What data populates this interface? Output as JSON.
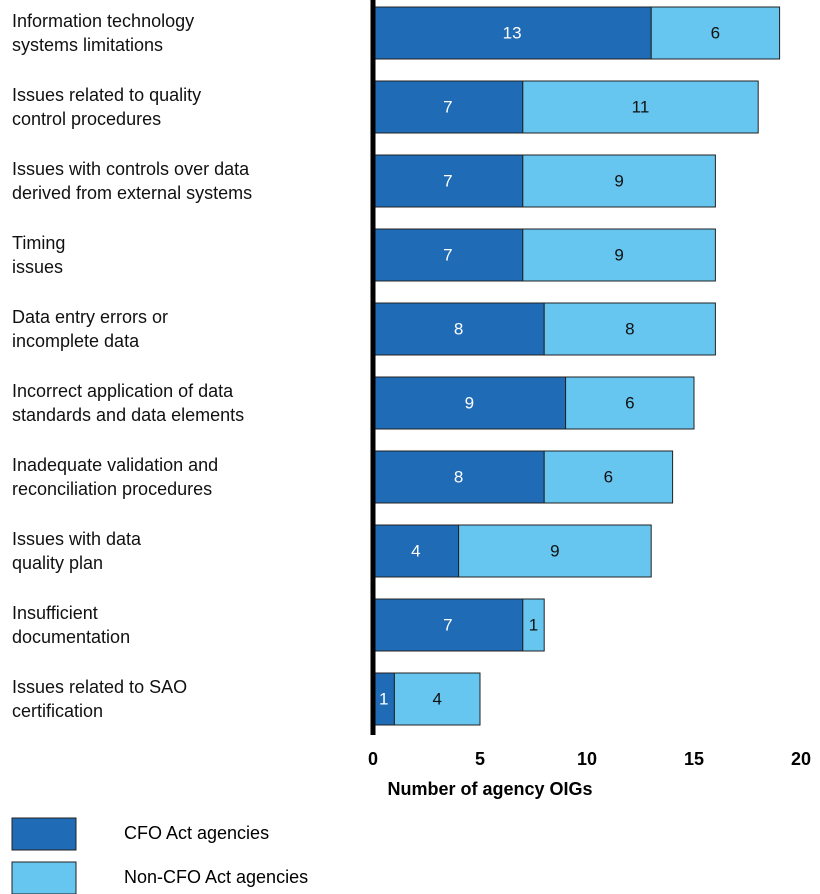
{
  "chart_data": {
    "type": "bar",
    "orientation": "horizontal",
    "stacked": true,
    "categories": [
      "Information technology\nsystems limitations",
      "Issues related to quality\ncontrol procedures",
      "Issues with controls over data\nderived from external systems",
      "Timing\nissues",
      "Data entry errors or\nincomplete data",
      "Incorrect application of data\nstandards and data elements",
      "Inadequate validation and\nreconciliation procedures",
      "Issues with data\nquality plan",
      "Insufficient\ndocumentation",
      "Issues related to SAO\ncertification"
    ],
    "series": [
      {
        "name": "CFO Act agencies",
        "color": "#1f6bb5",
        "label_color": "#ffffff",
        "values": [
          13,
          7,
          7,
          7,
          8,
          9,
          8,
          4,
          7,
          1
        ]
      },
      {
        "name": "Non-CFO Act agencies",
        "color": "#66c6f0",
        "label_color": "#111111",
        "values": [
          6,
          11,
          9,
          9,
          8,
          6,
          6,
          9,
          1,
          4
        ]
      }
    ],
    "xlabel": "Number of agency OIGs",
    "xlim": [
      0,
      20
    ],
    "xticks": [
      0,
      5,
      10,
      15,
      20
    ],
    "grid": false,
    "legend": "bottom-left"
  }
}
